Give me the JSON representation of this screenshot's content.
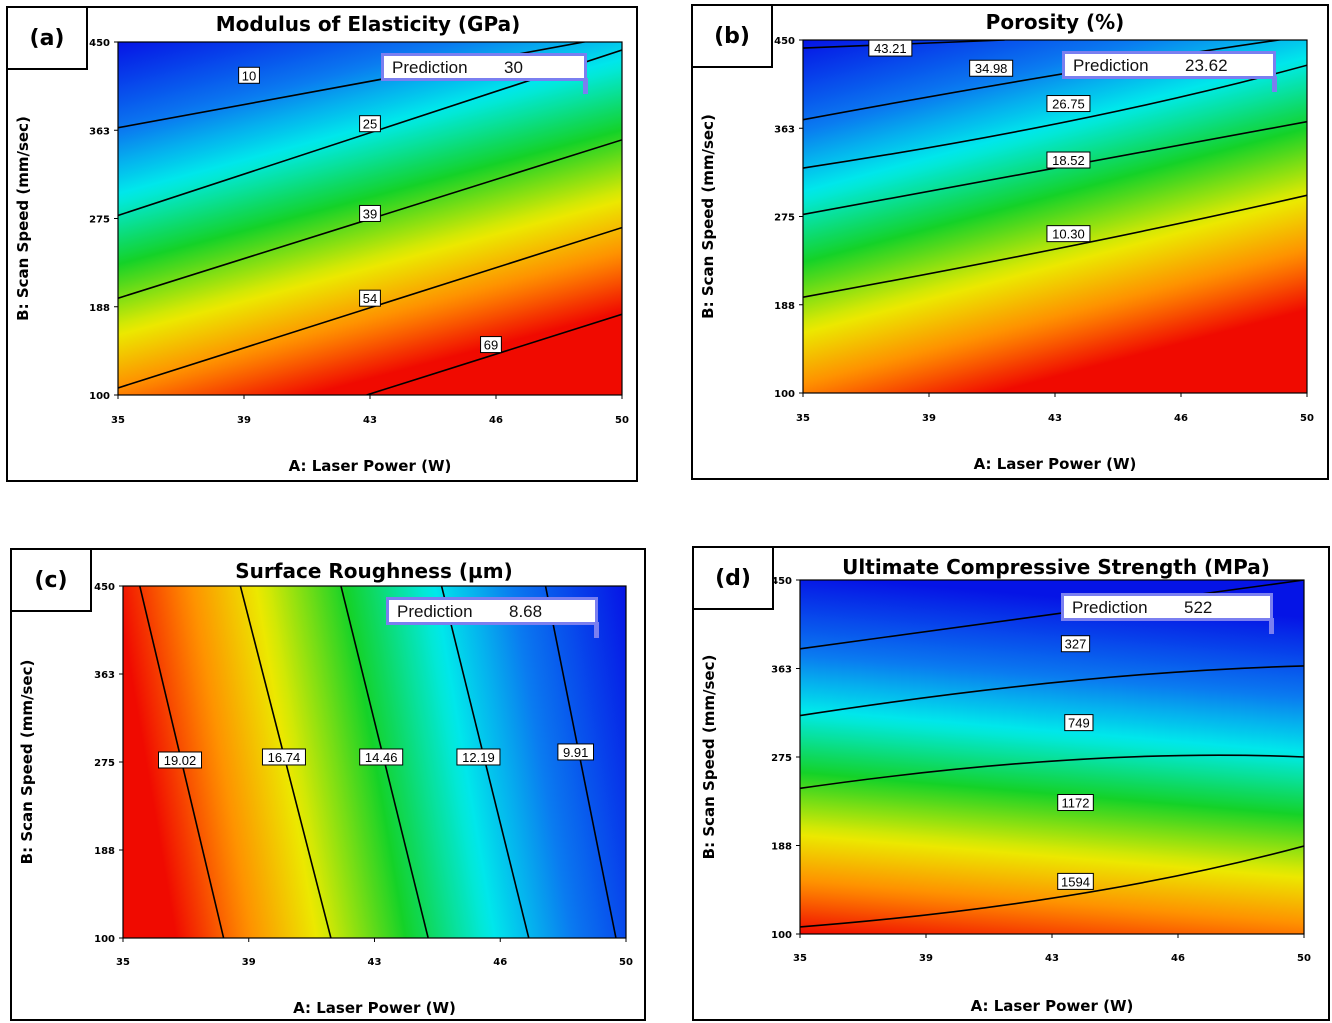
{
  "chart_data": [
    {
      "id": "a",
      "type": "heatmap",
      "panel_tag": "(a)",
      "title": "Modulus of Elasticity (GPa)",
      "xlabel": "A: Laser Power (W)",
      "ylabel": "B: Scan Speed (mm/sec)",
      "x_ticks": [
        "35",
        "39",
        "43",
        "46",
        "50"
      ],
      "y_ticks": [
        "100",
        "188",
        "275",
        "363",
        "450"
      ],
      "xlim": [
        35,
        50
      ],
      "ylim": [
        100,
        450
      ],
      "color_scale": "blue-low-red-high",
      "prediction": {
        "label": "Prediction",
        "value": "30"
      },
      "contours": [
        {
          "label": "10",
          "points": [
            [
              35,
              365
            ],
            [
              50,
              457
            ]
          ],
          "label_at": [
            38.9,
            417
          ]
        },
        {
          "label": "25",
          "points": [
            [
              35,
              278
            ],
            [
              50,
              442
            ]
          ],
          "label_at": [
            42.5,
            369
          ]
        },
        {
          "label": "39",
          "points": [
            [
              35,
              196
            ],
            [
              50,
              353
            ]
          ],
          "label_at": [
            42.5,
            280
          ]
        },
        {
          "label": "54",
          "points": [
            [
              35,
              107
            ],
            [
              50,
              266
            ]
          ],
          "label_at": [
            42.5,
            196
          ]
        },
        {
          "label": "69",
          "points": [
            [
              42.4,
              100
            ],
            [
              50,
              180
            ]
          ],
          "label_at": [
            46.1,
            150
          ]
        }
      ]
    },
    {
      "id": "b",
      "type": "heatmap",
      "panel_tag": "(b)",
      "title": "Porosity (%)",
      "xlabel": "A: Laser Power (W)",
      "ylabel": "B: Scan Speed (mm/sec)",
      "x_ticks": [
        "35",
        "39",
        "43",
        "46",
        "50"
      ],
      "y_ticks": [
        "100",
        "188",
        "275",
        "363",
        "450"
      ],
      "xlim": [
        35,
        50
      ],
      "ylim": [
        100,
        450
      ],
      "color_scale": "blue-low-red-high",
      "prediction": {
        "label": "Prediction",
        "value": "23.62"
      },
      "contours": [
        {
          "label": "43.21",
          "points": [
            [
              35,
              442
            ],
            [
              41,
              450
            ]
          ],
          "label_at": [
            37.6,
            442
          ]
        },
        {
          "label": "34.98",
          "points": [
            [
              35,
              371
            ],
            [
              43,
              418
            ],
            [
              50,
              454
            ]
          ],
          "label_at": [
            40.6,
            422
          ]
        },
        {
          "label": "26.75",
          "points": [
            [
              35,
              323
            ],
            [
              43,
              370
            ],
            [
              50,
              425
            ]
          ],
          "label_at": [
            42.9,
            387
          ]
        },
        {
          "label": "18.52",
          "points": [
            [
              35,
              277
            ],
            [
              43,
              326
            ],
            [
              50,
              369
            ]
          ],
          "label_at": [
            42.9,
            331
          ]
        },
        {
          "label": "10.30",
          "points": [
            [
              35,
              195
            ],
            [
              43,
              246
            ],
            [
              50,
              296
            ]
          ],
          "label_at": [
            42.9,
            258
          ]
        }
      ]
    },
    {
      "id": "c",
      "type": "heatmap",
      "panel_tag": "(c)",
      "title": "Surface Roughness (µm)",
      "xlabel": "A: Laser Power (W)",
      "ylabel": "B: Scan Speed (mm/sec)",
      "x_ticks": [
        "35",
        "39",
        "43",
        "46",
        "50"
      ],
      "y_ticks": [
        "100",
        "188",
        "275",
        "363",
        "450"
      ],
      "xlim": [
        35,
        50
      ],
      "ylim": [
        100,
        450
      ],
      "color_scale": "red-low-x-blue-high-x",
      "prediction": {
        "label": "Prediction",
        "value": "8.68"
      },
      "contours": [
        {
          "label": "19.02",
          "points": [
            [
              35.5,
              450
            ],
            [
              38.0,
              100
            ]
          ],
          "label_at": [
            36.7,
            277
          ]
        },
        {
          "label": "16.74",
          "points": [
            [
              38.5,
              450
            ],
            [
              41.2,
              100
            ]
          ],
          "label_at": [
            39.8,
            280
          ]
        },
        {
          "label": "14.46",
          "points": [
            [
              41.5,
              450
            ],
            [
              44.1,
              100
            ]
          ],
          "label_at": [
            42.7,
            280
          ]
        },
        {
          "label": "12.19",
          "points": [
            [
              44.5,
              450
            ],
            [
              47.1,
              100
            ]
          ],
          "label_at": [
            45.6,
            280
          ]
        },
        {
          "label": "9.91",
          "points": [
            [
              47.6,
              450
            ],
            [
              49.7,
              100
            ]
          ],
          "label_at": [
            48.5,
            285
          ]
        }
      ]
    },
    {
      "id": "d",
      "type": "heatmap",
      "panel_tag": "(d)",
      "title": "Ultimate Compressive Strength (MPa)",
      "xlabel": "A: Laser Power (W)",
      "ylabel": "B: Scan Speed (mm/sec)",
      "x_ticks": [
        "35",
        "39",
        "43",
        "46",
        "50"
      ],
      "y_ticks": [
        "100",
        "188",
        "275",
        "363",
        "450"
      ],
      "xlim": [
        35,
        50
      ],
      "ylim": [
        100,
        450
      ],
      "color_scale": "red-low-y-blue-high-y",
      "prediction": {
        "label": "Prediction",
        "value": "522"
      },
      "contours": [
        {
          "label": "327",
          "points": [
            [
              35,
              382
            ],
            [
              43,
              418
            ],
            [
              50,
              450
            ]
          ],
          "label_at": [
            43.2,
            387
          ]
        },
        {
          "label": "749",
          "points": [
            [
              35,
              316
            ],
            [
              43,
              350
            ],
            [
              50,
              365
            ]
          ],
          "label_at": [
            43.3,
            309
          ]
        },
        {
          "label": "1172",
          "points": [
            [
              35,
              244
            ],
            [
              43,
              272
            ],
            [
              50,
              275
            ]
          ],
          "label_at": [
            43.2,
            230
          ]
        },
        {
          "label": "1594",
          "points": [
            [
              35,
              107
            ],
            [
              43,
              138
            ],
            [
              50,
              187
            ]
          ],
          "label_at": [
            43.2,
            152
          ]
        }
      ]
    }
  ]
}
